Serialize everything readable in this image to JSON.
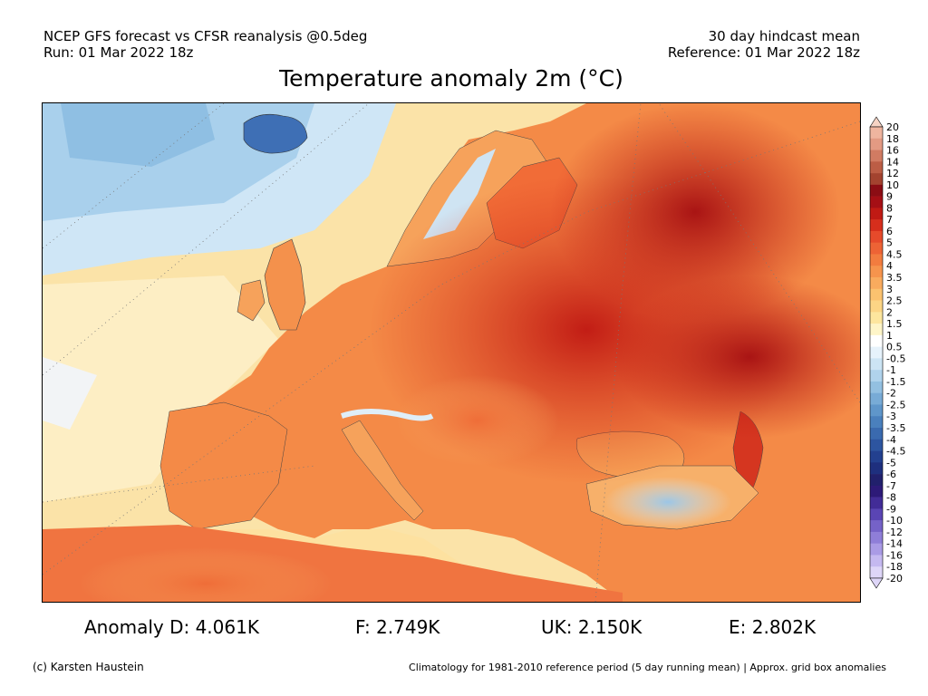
{
  "header": {
    "left_line1": "NCEP GFS forecast vs CFSR reanalysis @0.5deg",
    "left_line2": "Run: 01 Mar 2022 18z",
    "right_line1": "30 day hindcast mean",
    "right_line2": "Reference: 01 Mar 2022 18z"
  },
  "title": "Temperature anomaly 2m (°C)",
  "legend": {
    "labels": [
      "20",
      "18",
      "16",
      "14",
      "12",
      "10",
      "9",
      "8",
      "7",
      "6",
      "5",
      "4.5",
      "4",
      "3.5",
      "3",
      "2.5",
      "2",
      "1.5",
      "1",
      "0.5",
      "-0.5",
      "-1",
      "-1.5",
      "-2",
      "-2.5",
      "-3",
      "-3.5",
      "-4",
      "-4.5",
      "-5",
      "-6",
      "-7",
      "-8",
      "-9",
      "-10",
      "-12",
      "-14",
      "-16",
      "-18",
      "-20"
    ],
    "colors": [
      "#f6d3c4",
      "#efb59f",
      "#e39a83",
      "#d17b62",
      "#bc5d45",
      "#a3432f",
      "#8b0d14",
      "#a50f15",
      "#c01a14",
      "#d62e1c",
      "#e64a2b",
      "#ed6335",
      "#f27c3f",
      "#f6944d",
      "#f9ab5e",
      "#fbc26f",
      "#fcd585",
      "#fde69e",
      "#fef5c8",
      "#ffffff",
      "#e6f2fb",
      "#cce4f4",
      "#b0d3ec",
      "#93c0e1",
      "#78abd6",
      "#5f96ca",
      "#4a80bd",
      "#3a6aaf",
      "#2d55a0",
      "#23408f",
      "#1e2f7e",
      "#21206c",
      "#2d1a78",
      "#422c97",
      "#5a45b4",
      "#7562c8",
      "#8f7ed8",
      "#aa9be5",
      "#c5b9f0",
      "#ded6f8"
    ]
  },
  "stats": {
    "d": "Anomaly D: 4.061K",
    "f": "F: 2.749K",
    "uk": "UK: 2.150K",
    "e": "E: 2.802K"
  },
  "credit": "(c) Karsten Haustein",
  "climatology": "Climatology for 1981-2010 reference period (5 day running mean) | Approx. grid box anomalies"
}
